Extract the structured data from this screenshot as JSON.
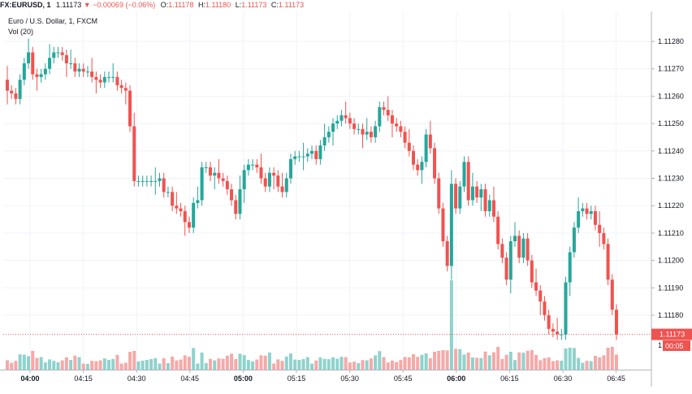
{
  "header": {
    "symbol": "FX:EURUSD, 1",
    "last": "1.11173",
    "change": "▼ −0.00069 (−0.06%)",
    "o_label": "O:",
    "o_value": "1.11178",
    "h_label": "H:",
    "h_value": "1.11180",
    "l_label": "L:",
    "l_value": "1.11173",
    "c_label": "C:",
    "c_value": "1.11173"
  },
  "legend": {
    "series": "Euro / U.S. Dollar, 1, FXCM",
    "volume": "Vol (20)"
  },
  "price_tag": "1.11173",
  "volume_tag": "00:05",
  "colors": {
    "up": "#26a69a",
    "down": "#ef5350",
    "up_vol": "#8fd2cc",
    "down_vol": "#f5a9a8",
    "grid": "#f0f3fa"
  },
  "chart_data": {
    "type": "candlestick",
    "y_ticks": [
      "1.11280",
      "1.11270",
      "1.11260",
      "1.11250",
      "1.11240",
      "1.11230",
      "1.11220",
      "1.11210",
      "1.11200",
      "1.11190",
      "1.11180"
    ],
    "ylim": [
      1.11165,
      1.1129
    ],
    "x_ticks": [
      "04:00",
      "04:15",
      "04:30",
      "04:45",
      "05:00",
      "05:15",
      "05:30",
      "05:45",
      "06:00",
      "06:15",
      "06:30",
      "06:45"
    ],
    "bold_x_ticks": [
      "04:00",
      "05:00",
      "06:00"
    ],
    "last_price": 1.11173,
    "candles_close": [
      1.11262,
      1.11261,
      1.11259,
      1.11266,
      1.11272,
      1.11276,
      1.11268,
      1.11267,
      1.11268,
      1.1127,
      1.11274,
      1.11276,
      1.11276,
      1.11275,
      1.11272,
      1.11272,
      1.11269,
      1.1127,
      1.11269,
      1.11269,
      1.11267,
      1.11266,
      1.11265,
      1.11267,
      1.11267,
      1.11267,
      1.11264,
      1.11263,
      1.11262,
      1.11249,
      1.11229,
      1.11229,
      1.11229,
      1.11229,
      1.11229,
      1.11229,
      1.1123,
      1.11225,
      1.11225,
      1.1122,
      1.11219,
      1.11218,
      1.11214,
      1.11212,
      1.11221,
      1.11222,
      1.11234,
      1.11234,
      1.11231,
      1.11232,
      1.1123,
      1.11229,
      1.11226,
      1.11222,
      1.11217,
      1.11226,
      1.11233,
      1.11235,
      1.11235,
      1.11234,
      1.1123,
      1.11227,
      1.11232,
      1.11231,
      1.11227,
      1.11225,
      1.1123,
      1.11237,
      1.11238,
      1.11238,
      1.11238,
      1.11239,
      1.1124,
      1.11237,
      1.11242,
      1.11245,
      1.11247,
      1.1125,
      1.11251,
      1.11253,
      1.11252,
      1.1125,
      1.11248,
      1.11248,
      1.11246,
      1.11247,
      1.11245,
      1.11249,
      1.11256,
      1.11255,
      1.11253,
      1.1125,
      1.11249,
      1.11247,
      1.11243,
      1.1124,
      1.11235,
      1.11233,
      1.11236,
      1.11246,
      1.11241,
      1.1123,
      1.11219,
      1.11207,
      1.11198,
      1.11228,
      1.11219,
      1.11227,
      1.11236,
      1.11222,
      1.11227,
      1.11223,
      1.11226,
      1.11218,
      1.11222,
      1.11216,
      1.11206,
      1.11201,
      1.11193,
      1.11207,
      1.11209,
      1.11201,
      1.11208,
      1.112,
      1.11192,
      1.11189,
      1.11185,
      1.1118,
      1.11175,
      1.11174,
      1.11173,
      1.11173,
      1.11192,
      1.11203,
      1.11212,
      1.11218,
      1.11219,
      1.11217,
      1.11218,
      1.11213,
      1.1121,
      1.11206,
      1.11193,
      1.11182,
      1.11173
    ],
    "volume_label": "Vol (20)"
  }
}
